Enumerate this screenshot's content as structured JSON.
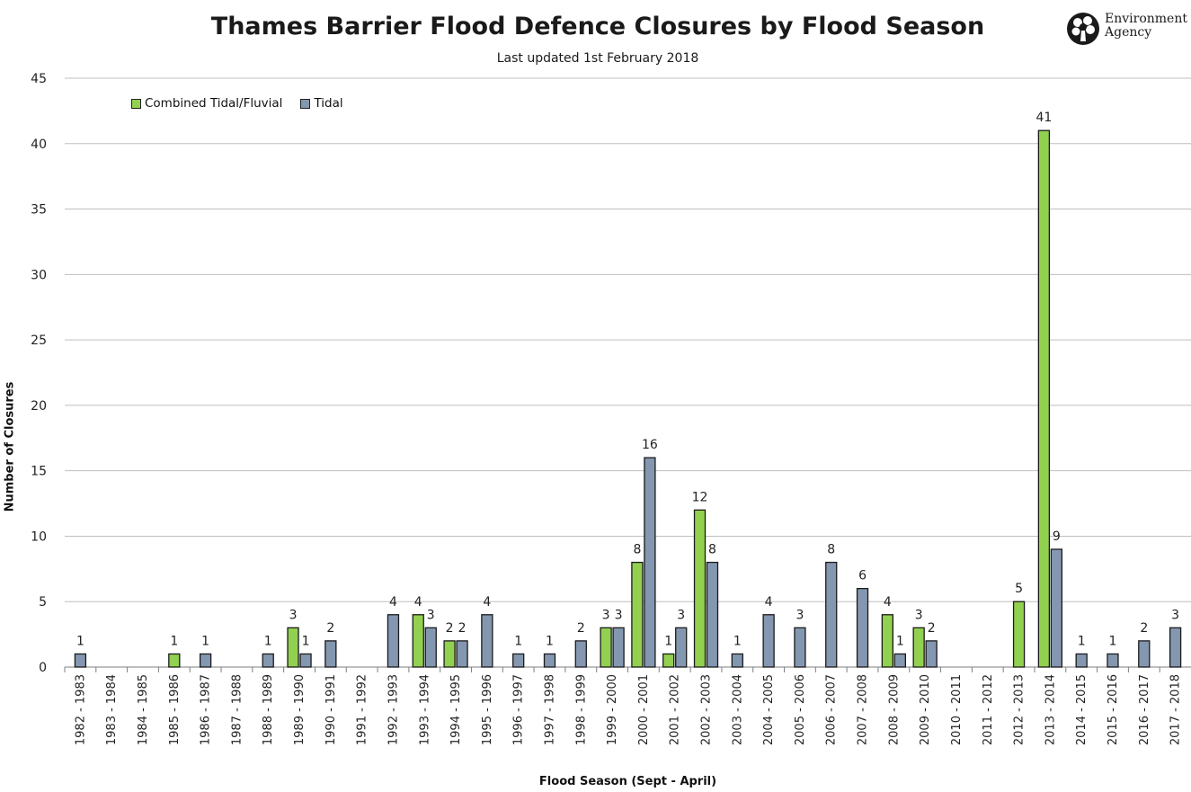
{
  "header": {
    "title": "Thames Barrier Flood Defence Closures by Flood Season",
    "subtitle": "Last updated 1st February 2018",
    "logo_line1": "Environment",
    "logo_line2": "Agency"
  },
  "colors": {
    "combined": "#92d050",
    "tidal": "#8497b0",
    "grid": "#bfbfbf",
    "axis": "#7f7f7f",
    "bar_border": "#1a1a1a"
  },
  "chart_data": {
    "type": "bar",
    "title": "Thames Barrier Flood Defence Closures by Flood Season",
    "subtitle": "Last updated 1st February 2018",
    "xlabel": "Flood Season (Sept - April)",
    "ylabel": "Number of Closures",
    "ylim": [
      0,
      45
    ],
    "yticks": [
      0,
      5,
      10,
      15,
      20,
      25,
      30,
      35,
      40,
      45
    ],
    "grid": true,
    "legend_position": "top-left",
    "categories": [
      "1982 - 1983",
      "1983 - 1984",
      "1984 - 1985",
      "1985 - 1986",
      "1986 - 1987",
      "1987 - 1988",
      "1988 - 1989",
      "1989 - 1990",
      "1990 - 1991",
      "1991 - 1992",
      "1992 - 1993",
      "1993 - 1994",
      "1994 - 1995",
      "1995 - 1996",
      "1996 - 1997",
      "1997 - 1998",
      "1998 - 1999",
      "1999 - 2000",
      "2000 - 2001",
      "2001 - 2002",
      "2002 - 2003",
      "2003 - 2004",
      "2004 - 2005",
      "2005 - 2006",
      "2006 - 2007",
      "2007 - 2008",
      "2008 - 2009",
      "2009 - 2010",
      "2010 - 2011",
      "2011 - 2012",
      "2012 - 2013",
      "2013 - 2014",
      "2014 - 2015",
      "2015 - 2016",
      "2016 - 2017",
      "2017 - 2018"
    ],
    "series": [
      {
        "name": "Combined Tidal/Fluvial",
        "values": [
          null,
          null,
          null,
          1,
          null,
          null,
          null,
          3,
          null,
          null,
          null,
          4,
          2,
          null,
          null,
          null,
          null,
          3,
          8,
          1,
          12,
          null,
          null,
          null,
          null,
          null,
          4,
          3,
          null,
          null,
          5,
          41,
          null,
          null,
          null,
          null
        ]
      },
      {
        "name": "Tidal",
        "values": [
          1,
          null,
          null,
          null,
          1,
          null,
          1,
          1,
          2,
          null,
          4,
          3,
          2,
          4,
          1,
          1,
          2,
          3,
          16,
          3,
          8,
          1,
          4,
          3,
          8,
          6,
          1,
          2,
          null,
          null,
          null,
          9,
          1,
          1,
          2,
          3
        ]
      }
    ]
  }
}
